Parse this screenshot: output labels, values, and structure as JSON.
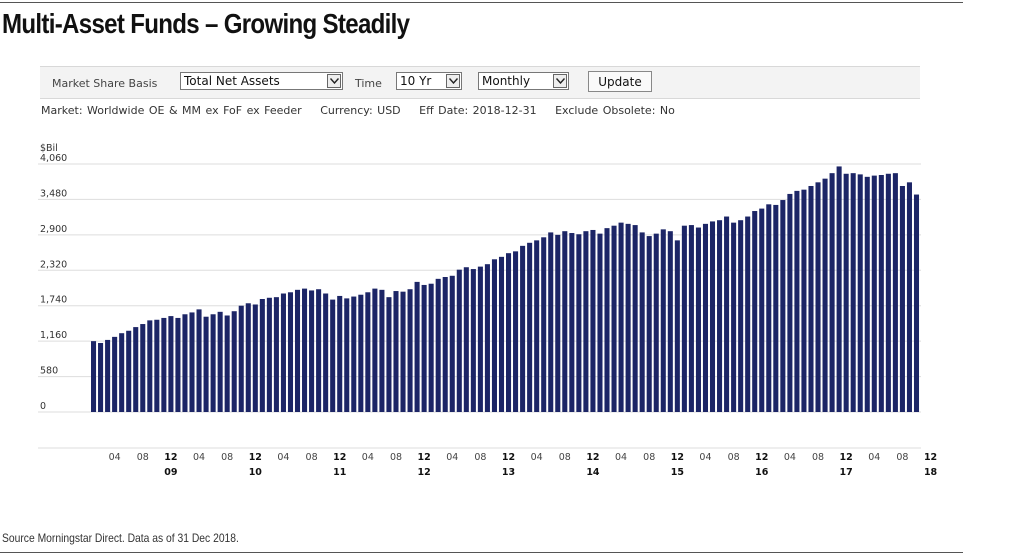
{
  "title": "Multi-Asset Funds – Growing Steadily",
  "toolbar": {
    "market_share_label": "Market Share Basis",
    "basis_value": "Total Net Assets",
    "time_label": "Time",
    "time_value": "10 Yr",
    "frequency_value": "Monthly",
    "update_label": "Update"
  },
  "meta": {
    "market": "Market: Worldwide OE & MM ex FoF ex Feeder",
    "currency": "Currency: USD",
    "eff_date": "Eff Date: 2018-12-31",
    "exclude": "Exclude Obsolete: No"
  },
  "chart_data": {
    "type": "bar",
    "ylabel": "$Bil",
    "ylim": [
      0,
      4060
    ],
    "yticks": [
      0,
      580,
      1160,
      1740,
      2320,
      2900,
      3480,
      4060
    ],
    "ytick_labels": [
      "0",
      "580",
      "1,160",
      "1,740",
      "2,320",
      "2,900",
      "3,480",
      "4,060"
    ],
    "grid": true,
    "color": "#1c2566",
    "x_month_labels": [
      "04",
      "08",
      "12",
      "04",
      "08",
      "12",
      "04",
      "08",
      "12",
      "04",
      "08",
      "12",
      "04",
      "08",
      "12",
      "04",
      "08",
      "12",
      "04",
      "08",
      "12",
      "04",
      "08",
      "12",
      "04",
      "08",
      "12",
      "04",
      "08",
      "12"
    ],
    "x_year_labels": [
      "09",
      "10",
      "11",
      "12",
      "13",
      "14",
      "15",
      "16",
      "17",
      "18"
    ],
    "start": "2009-01",
    "end": "2018-12",
    "values": [
      1160,
      1130,
      1180,
      1230,
      1290,
      1330,
      1390,
      1440,
      1500,
      1510,
      1540,
      1570,
      1540,
      1600,
      1630,
      1680,
      1560,
      1600,
      1640,
      1580,
      1650,
      1740,
      1780,
      1760,
      1850,
      1870,
      1880,
      1940,
      1960,
      2000,
      2020,
      1990,
      2010,
      1940,
      1840,
      1900,
      1860,
      1890,
      1920,
      1960,
      2020,
      2000,
      1880,
      1980,
      1970,
      2010,
      2130,
      2080,
      2100,
      2180,
      2210,
      2230,
      2330,
      2370,
      2340,
      2380,
      2420,
      2500,
      2540,
      2600,
      2630,
      2720,
      2770,
      2810,
      2860,
      2940,
      2900,
      2960,
      2930,
      2910,
      2960,
      2980,
      2920,
      3010,
      3050,
      3100,
      3080,
      3060,
      2940,
      2880,
      2920,
      2990,
      2960,
      2810,
      3050,
      3060,
      3020,
      3080,
      3120,
      3140,
      3200,
      3100,
      3140,
      3200,
      3290,
      3330,
      3400,
      3390,
      3470,
      3570,
      3620,
      3640,
      3700,
      3760,
      3820,
      3910,
      4020,
      3900,
      3910,
      3890,
      3850,
      3870,
      3880,
      3900,
      3910,
      3700,
      3760,
      3560
    ]
  },
  "source": "Source Morningstar Direct. Data as of 31 Dec 2018."
}
